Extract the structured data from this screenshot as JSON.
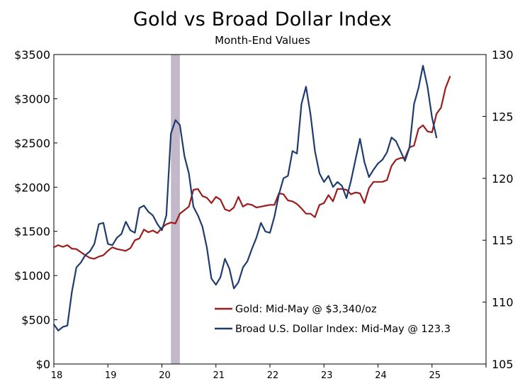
{
  "chart_data": {
    "type": "line",
    "title": "Gold vs Broad Dollar Index",
    "subtitle": "Month-End Values",
    "xlabel": "",
    "ylabel_left": "",
    "ylabel_right": "",
    "x_ticks": [
      "18",
      "19",
      "20",
      "21",
      "22",
      "23",
      "24",
      "25"
    ],
    "x_range": [
      2018.0,
      2026.0
    ],
    "y_left_ticks": [
      "$0",
      "$500",
      "$1000",
      "$1500",
      "$2000",
      "$2500",
      "$3000",
      "$3500"
    ],
    "y_left_range": [
      0,
      3500
    ],
    "y_right_ticks": [
      "105",
      "110",
      "115",
      "120",
      "125",
      "130"
    ],
    "y_right_range": [
      105,
      130
    ],
    "grid": false,
    "recession_band": {
      "x_start": 2020.167,
      "x_end": 2020.333,
      "color": "#c2b8c9"
    },
    "legend_position": "bottom-center inside plot",
    "series": [
      {
        "name": "Gold: Mid-May @ $3,340/oz",
        "axis": "left",
        "color": "#9b1c1c",
        "x": [
          2018.0,
          2018.083,
          2018.167,
          2018.25,
          2018.333,
          2018.417,
          2018.5,
          2018.583,
          2018.667,
          2018.75,
          2018.833,
          2018.917,
          2019.0,
          2019.083,
          2019.167,
          2019.25,
          2019.333,
          2019.417,
          2019.5,
          2019.583,
          2019.667,
          2019.75,
          2019.833,
          2019.917,
          2020.0,
          2020.083,
          2020.167,
          2020.25,
          2020.333,
          2020.417,
          2020.5,
          2020.583,
          2020.667,
          2020.75,
          2020.833,
          2020.917,
          2021.0,
          2021.083,
          2021.167,
          2021.25,
          2021.333,
          2021.417,
          2021.5,
          2021.583,
          2021.667,
          2021.75,
          2021.833,
          2021.917,
          2022.0,
          2022.083,
          2022.167,
          2022.25,
          2022.333,
          2022.417,
          2022.5,
          2022.583,
          2022.667,
          2022.75,
          2022.833,
          2022.917,
          2023.0,
          2023.083,
          2023.167,
          2023.25,
          2023.333,
          2023.417,
          2023.5,
          2023.583,
          2023.667,
          2023.75,
          2023.833,
          2023.917,
          2024.0,
          2024.083,
          2024.167,
          2024.25,
          2024.333,
          2024.417,
          2024.5,
          2024.583,
          2024.667,
          2024.75,
          2024.833,
          2024.917,
          2025.0,
          2025.083,
          2025.167,
          2025.25,
          2025.333
        ],
        "values": [
          1320,
          1345,
          1325,
          1345,
          1305,
          1300,
          1265,
          1230,
          1200,
          1190,
          1215,
          1230,
          1280,
          1320,
          1300,
          1290,
          1280,
          1310,
          1400,
          1420,
          1520,
          1490,
          1510,
          1480,
          1540,
          1580,
          1600,
          1590,
          1700,
          1740,
          1780,
          1970,
          1980,
          1900,
          1880,
          1820,
          1890,
          1860,
          1750,
          1730,
          1770,
          1890,
          1780,
          1810,
          1800,
          1770,
          1780,
          1790,
          1800,
          1800,
          1930,
          1920,
          1850,
          1840,
          1810,
          1760,
          1700,
          1700,
          1660,
          1800,
          1820,
          1910,
          1840,
          1980,
          1980,
          1970,
          1920,
          1940,
          1930,
          1820,
          1990,
          2060,
          2060,
          2060,
          2080,
          2240,
          2310,
          2330,
          2330,
          2450,
          2470,
          2660,
          2700,
          2630,
          2620,
          2830,
          2900,
          3120,
          3250
        ]
      },
      {
        "name": "Broad U.S. Dollar Index: Mid-May @ 123.3",
        "axis": "right",
        "color": "#1f3c6e",
        "x": [
          2018.0,
          2018.083,
          2018.167,
          2018.25,
          2018.333,
          2018.417,
          2018.5,
          2018.583,
          2018.667,
          2018.75,
          2018.833,
          2018.917,
          2019.0,
          2019.083,
          2019.167,
          2019.25,
          2019.333,
          2019.417,
          2019.5,
          2019.583,
          2019.667,
          2019.75,
          2019.833,
          2019.917,
          2020.0,
          2020.083,
          2020.167,
          2020.25,
          2020.333,
          2020.417,
          2020.5,
          2020.583,
          2020.667,
          2020.75,
          2020.833,
          2020.917,
          2021.0,
          2021.083,
          2021.167,
          2021.25,
          2021.333,
          2021.417,
          2021.5,
          2021.583,
          2021.667,
          2021.75,
          2021.833,
          2021.917,
          2022.0,
          2022.083,
          2022.167,
          2022.25,
          2022.333,
          2022.417,
          2022.5,
          2022.583,
          2022.667,
          2022.75,
          2022.833,
          2022.917,
          2023.0,
          2023.083,
          2023.167,
          2023.25,
          2023.333,
          2023.417,
          2023.5,
          2023.583,
          2023.667,
          2023.75,
          2023.833,
          2023.917,
          2024.0,
          2024.083,
          2024.167,
          2024.25,
          2024.333,
          2024.417,
          2024.5,
          2024.583,
          2024.667,
          2024.75,
          2024.833,
          2024.917,
          2025.0,
          2025.083,
          2025.167,
          2025.25,
          2025.333
        ],
        "values": [
          108.2,
          107.7,
          108.0,
          108.1,
          110.8,
          112.8,
          113.2,
          113.8,
          114.1,
          114.7,
          116.3,
          116.4,
          114.7,
          114.6,
          115.2,
          115.5,
          116.5,
          115.8,
          115.6,
          117.6,
          117.8,
          117.3,
          117.0,
          116.3,
          115.8,
          117.0,
          123.6,
          124.7,
          124.3,
          121.8,
          120.4,
          117.7,
          117.0,
          116.1,
          114.4,
          111.9,
          111.4,
          112.0,
          113.5,
          112.7,
          111.1,
          111.6,
          112.8,
          113.3,
          114.3,
          115.2,
          116.4,
          115.7,
          115.6,
          116.9,
          118.7,
          120.0,
          120.2,
          122.2,
          122.0,
          126.0,
          127.4,
          125.2,
          122.2,
          120.4,
          119.7,
          120.2,
          119.3,
          119.7,
          119.4,
          118.4,
          119.8,
          121.5,
          123.2,
          121.3,
          120.1,
          120.7,
          121.2,
          121.5,
          122.1,
          123.3,
          123.0,
          122.2,
          121.4,
          122.5,
          126.0,
          127.3,
          129.1,
          127.4,
          124.9,
          123.3,
          null,
          null,
          null
        ]
      }
    ]
  }
}
